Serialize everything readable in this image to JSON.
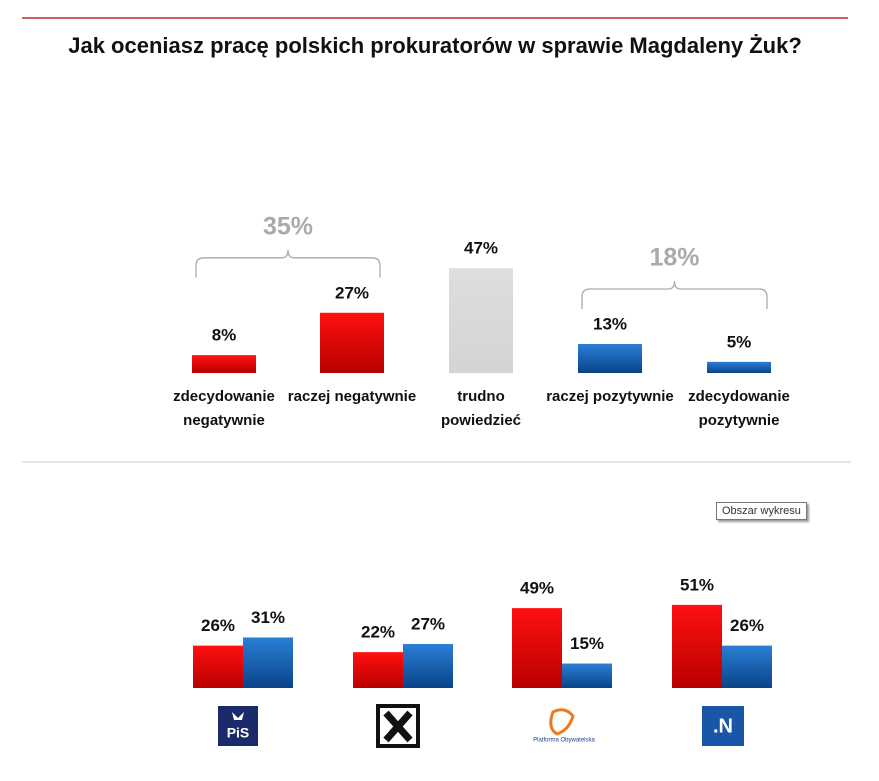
{
  "chart_data": [
    {
      "type": "bar",
      "title": "Jak oceniasz pracę polskich prokuratorów w sprawie Magdaleny Żuk?",
      "categories": [
        "zdecydowanie negatywnie",
        "raczej negatywnie",
        "trudno powiedzieć",
        "raczej pozytywnie",
        "zdecydowanie pozytywnie"
      ],
      "values": [
        8,
        27,
        47,
        13,
        5
      ],
      "value_labels": [
        "8%",
        "27%",
        "47%",
        "13%",
        "5%"
      ],
      "colors": [
        "red",
        "red",
        "gray",
        "blue",
        "blue"
      ],
      "brackets": [
        {
          "value": 35,
          "label": "35%"
        },
        {
          "value": 18,
          "label": "18%"
        }
      ]
    },
    {
      "type": "grouped-bar",
      "categories": [
        "PiS",
        null,
        "Platforma Obywatelska",
        ".N"
      ],
      "series": [
        {
          "color": "red",
          "values": [
            26,
            22,
            49,
            51
          ],
          "value_labels": [
            "26%",
            "22%",
            "49%",
            "51%"
          ]
        },
        {
          "color": "blue",
          "values": [
            31,
            27,
            15,
            26
          ],
          "value_labels": [
            "31%",
            "27%",
            "15%",
            "26%"
          ]
        }
      ]
    }
  ],
  "tooltip": "Obszar wykresu"
}
